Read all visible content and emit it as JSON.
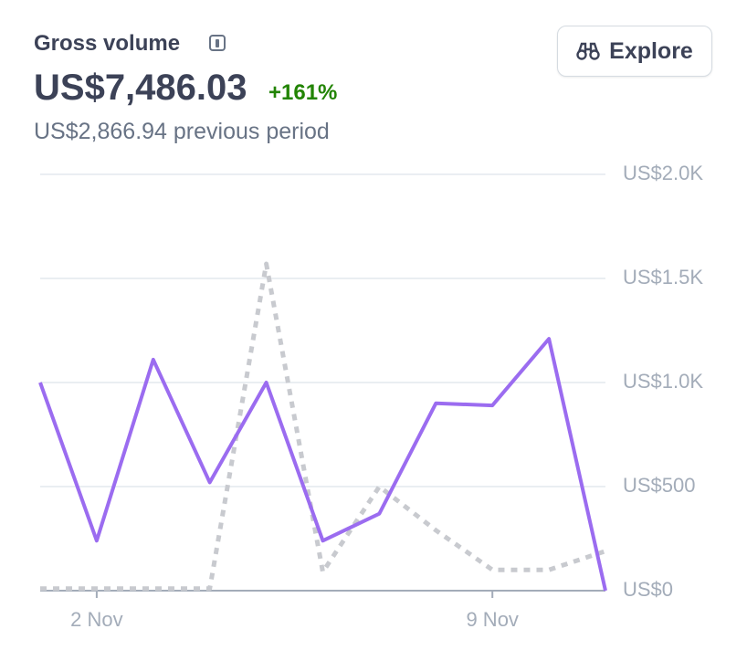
{
  "header": {
    "title": "Gross volume",
    "amount": "US$7,486.03",
    "change": "+161%",
    "previous": "US$2,866.94 previous period",
    "button": "Explore"
  },
  "chart_data": {
    "type": "line",
    "categories": [
      null,
      "2 Nov",
      null,
      null,
      null,
      null,
      null,
      null,
      "9 Nov",
      null,
      null
    ],
    "series": [
      {
        "color": "#9b6cf0",
        "dashed": false,
        "values": [
          1000,
          240,
          1110,
          520,
          1000,
          240,
          370,
          900,
          890,
          1210,
          0
        ]
      },
      {
        "color": "#c8cacf",
        "dashed": true,
        "values": [
          10,
          10,
          10,
          10,
          1570,
          90,
          500,
          290,
          100,
          100,
          190
        ]
      }
    ],
    "ylim": [
      0,
      2000
    ],
    "yticks": [
      {
        "value": 0,
        "label": "US$0"
      },
      {
        "value": 500,
        "label": "US$500"
      },
      {
        "value": 1000,
        "label": "US$1.0K"
      },
      {
        "value": 1500,
        "label": "US$1.5K"
      },
      {
        "value": 2000,
        "label": "US$2.0K"
      }
    ],
    "grid": true
  }
}
